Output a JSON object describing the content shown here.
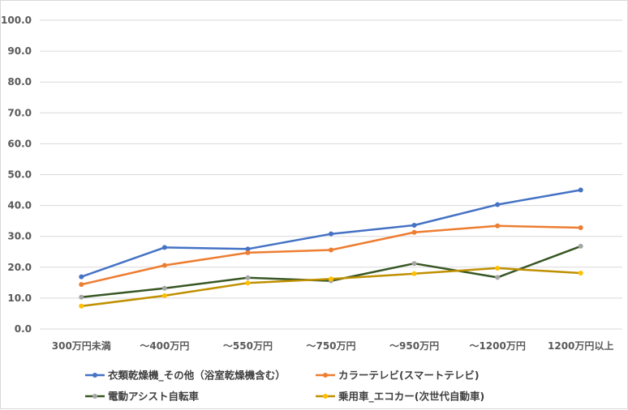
{
  "chart_data": {
    "type": "line",
    "categories": [
      "300万円未満",
      "～400万円",
      "～550万円",
      "～750万円",
      "～950万円",
      "～1200万円",
      "1200万円以上"
    ],
    "series": [
      {
        "name": "衣類乾燥機_その他（浴室乾燥機含む）",
        "values": [
          16.9,
          26.4,
          25.9,
          30.8,
          33.6,
          40.3,
          45.0
        ],
        "color": "#4472c4",
        "marker_color": "#4472c4"
      },
      {
        "name": "カラーテレビ(スマートテレビ)",
        "values": [
          14.4,
          20.6,
          24.7,
          25.6,
          31.3,
          33.4,
          32.8
        ],
        "color": "#ed7d31",
        "marker_color": "#ed7d31"
      },
      {
        "name": "電動アシスト自転車",
        "values": [
          10.3,
          13.2,
          16.6,
          15.6,
          21.2,
          16.7,
          26.8
        ],
        "color": "#375623",
        "marker_color": "#a5a5a5"
      },
      {
        "name": "乗用車_エコカー(次世代自動車)",
        "values": [
          7.4,
          10.8,
          14.9,
          16.2,
          17.9,
          19.7,
          18.1
        ],
        "color": "#bf9000",
        "marker_color": "#ffc000"
      }
    ],
    "y_ticks": [
      "100.0",
      "90.0",
      "80.0",
      "70.0",
      "60.0",
      "50.0",
      "40.0",
      "30.0",
      "20.0",
      "10.0",
      "0.0"
    ],
    "ylim": [
      0,
      100
    ],
    "grid": true,
    "legend_position": "bottom",
    "title": "",
    "xlabel": "",
    "ylabel": ""
  }
}
